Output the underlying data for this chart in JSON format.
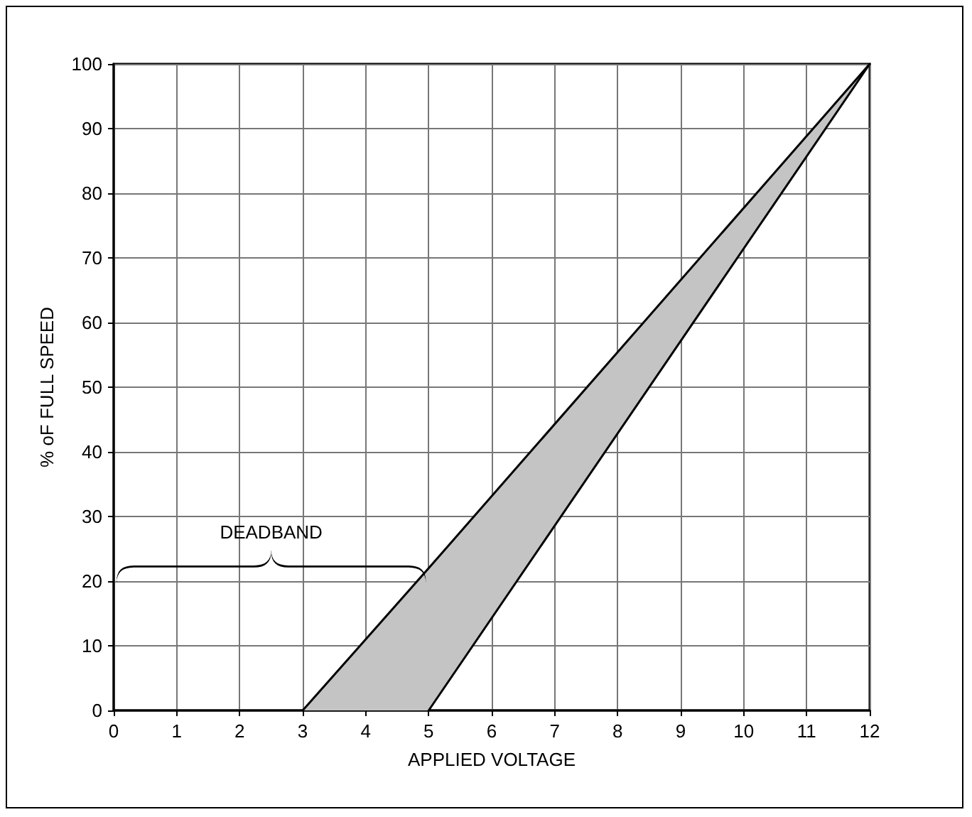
{
  "chart_data": {
    "type": "line",
    "xlabel": "APPLIED VOLTAGE",
    "ylabel": "% oF FULL SPEED",
    "xlim": [
      0,
      12
    ],
    "xticks": [
      0,
      1,
      2,
      3,
      4,
      5,
      6,
      7,
      8,
      9,
      10,
      11,
      12
    ],
    "ylim": [
      0,
      100
    ],
    "yticks": [
      0,
      10,
      20,
      30,
      40,
      50,
      60,
      70,
      80,
      90,
      100
    ],
    "grid": true,
    "marker": "none",
    "line_style": "solid",
    "series": [
      {
        "color": "#000000",
        "x": [
          3,
          5,
          12
        ],
        "values": [
          0,
          22,
          100
        ],
        "lower": [
          0,
          0,
          100
        ],
        "upper": [
          0,
          22,
          100
        ]
      },
      {
        "color": "#000000",
        "x": [
          5,
          12
        ],
        "values": [
          0,
          100
        ]
      }
    ],
    "annotations": [
      "DEADBAND"
    ]
  }
}
